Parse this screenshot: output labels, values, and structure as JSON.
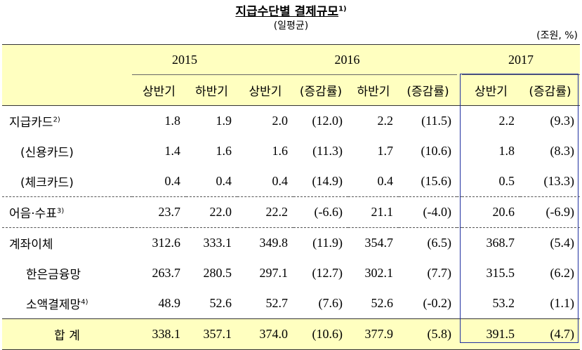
{
  "header": {
    "title": "지급수단별 결제규모",
    "title_note": "1)",
    "subtitle": "(일평균)",
    "unit": "(조원, %)"
  },
  "table": {
    "years": [
      "2015",
      "2016",
      "2017"
    ],
    "columns": [
      "상반기",
      "하반기",
      "상반기",
      "(증감률)",
      "하반기",
      "(증감률)",
      "상반기",
      "(증감률)"
    ],
    "rows": [
      {
        "label": "지급카드",
        "note": "2)",
        "cells": [
          "1.8",
          "1.9",
          "2.0",
          "(12.0)",
          "2.2",
          "(11.5)",
          "2.2",
          "(9.3)"
        ]
      },
      {
        "label": "(신용카드)",
        "cells": [
          "1.4",
          "1.6",
          "1.6",
          "(11.3)",
          "1.7",
          "(10.6)",
          "1.8",
          "(8.3)"
        ]
      },
      {
        "label": "(체크카드)",
        "cells": [
          "0.4",
          "0.4",
          "0.4",
          "(14.9)",
          "0.4",
          "(15.6)",
          "0.5",
          "(13.3)"
        ]
      },
      {
        "label": "어음·수표",
        "note": "3)",
        "cells": [
          "23.7",
          "22.0",
          "22.2",
          "(-6.6)",
          "21.1",
          "(-4.0)",
          "20.6",
          "(-6.9)"
        ]
      },
      {
        "label": "계좌이체",
        "cells": [
          "312.6",
          "333.1",
          "349.8",
          "(11.9)",
          "354.7",
          "(6.5)",
          "368.7",
          "(5.4)"
        ]
      },
      {
        "label": "한은금융망",
        "cells": [
          "263.7",
          "280.5",
          "297.1",
          "(12.7)",
          "302.1",
          "(7.7)",
          "315.5",
          "(6.2)"
        ]
      },
      {
        "label": "소액결제망",
        "note": "4)",
        "cells": [
          "48.9",
          "52.6",
          "52.7",
          "(7.6)",
          "52.6",
          "(-0.2)",
          "53.2",
          "(1.1)"
        ]
      },
      {
        "label": "합 계",
        "cells": [
          "338.1",
          "357.1",
          "374.0",
          "(10.6)",
          "377.9",
          "(5.8)",
          "391.5",
          "(4.7)"
        ]
      }
    ]
  }
}
